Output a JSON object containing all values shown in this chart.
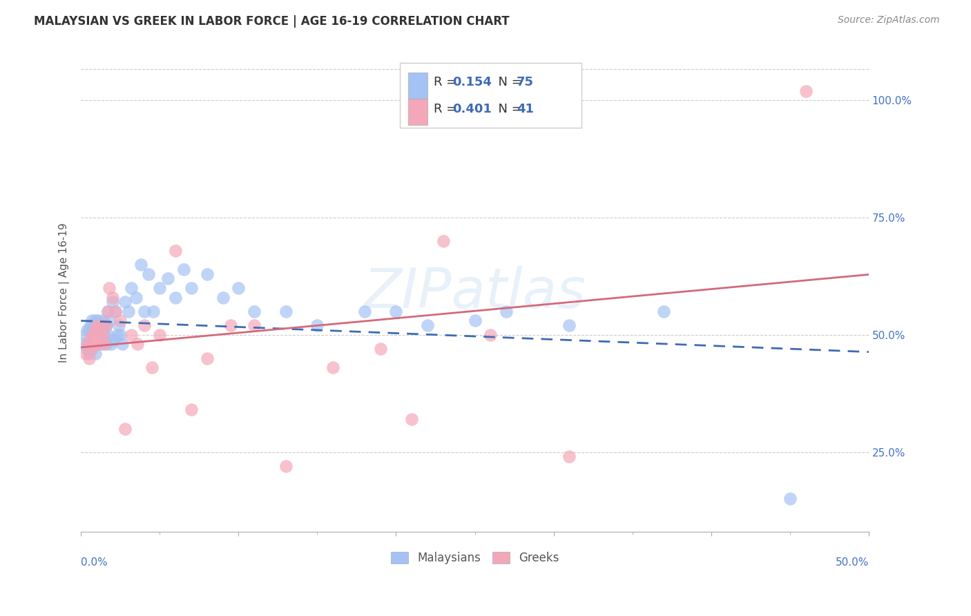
{
  "title": "MALAYSIAN VS GREEK IN LABOR FORCE | AGE 16-19 CORRELATION CHART",
  "source": "Source: ZipAtlas.com",
  "ylabel": "In Labor Force | Age 16-19",
  "ytick_values": [
    0.25,
    0.5,
    0.75,
    1.0
  ],
  "xmin": 0.0,
  "xmax": 0.5,
  "ymin": 0.08,
  "ymax": 1.1,
  "r_malaysian": 0.154,
  "n_malaysian": 75,
  "r_greek": 0.401,
  "n_greek": 41,
  "color_malaysian": "#a4c2f4",
  "color_greek": "#f4a7b9",
  "color_trendline_malaysian": "#3d6bb5",
  "color_trendline_greek": "#d5697a",
  "legend_label_malaysian": "Malaysians",
  "legend_label_greek": "Greeks",
  "watermark": "ZIPatlas",
  "malaysian_x": [
    0.002,
    0.003,
    0.004,
    0.004,
    0.005,
    0.005,
    0.005,
    0.006,
    0.006,
    0.007,
    0.007,
    0.007,
    0.008,
    0.008,
    0.008,
    0.009,
    0.009,
    0.009,
    0.009,
    0.01,
    0.01,
    0.01,
    0.01,
    0.011,
    0.011,
    0.011,
    0.012,
    0.012,
    0.013,
    0.013,
    0.013,
    0.014,
    0.014,
    0.015,
    0.015,
    0.016,
    0.016,
    0.017,
    0.017,
    0.018,
    0.019,
    0.02,
    0.021,
    0.022,
    0.023,
    0.024,
    0.025,
    0.026,
    0.028,
    0.03,
    0.032,
    0.035,
    0.038,
    0.04,
    0.043,
    0.046,
    0.05,
    0.055,
    0.06,
    0.065,
    0.07,
    0.08,
    0.09,
    0.1,
    0.11,
    0.13,
    0.15,
    0.18,
    0.2,
    0.22,
    0.25,
    0.27,
    0.31,
    0.37,
    0.45
  ],
  "malaysian_y": [
    0.48,
    0.5,
    0.47,
    0.51,
    0.48,
    0.51,
    0.46,
    0.52,
    0.49,
    0.5,
    0.53,
    0.47,
    0.51,
    0.49,
    0.52,
    0.5,
    0.48,
    0.53,
    0.46,
    0.51,
    0.5,
    0.49,
    0.52,
    0.5,
    0.48,
    0.53,
    0.51,
    0.49,
    0.5,
    0.52,
    0.48,
    0.51,
    0.53,
    0.5,
    0.49,
    0.52,
    0.48,
    0.55,
    0.5,
    0.53,
    0.48,
    0.57,
    0.49,
    0.55,
    0.5,
    0.52,
    0.5,
    0.48,
    0.57,
    0.55,
    0.6,
    0.58,
    0.65,
    0.55,
    0.63,
    0.55,
    0.6,
    0.62,
    0.58,
    0.64,
    0.6,
    0.63,
    0.58,
    0.6,
    0.55,
    0.55,
    0.52,
    0.55,
    0.55,
    0.52,
    0.53,
    0.55,
    0.52,
    0.55,
    0.15
  ],
  "greek_x": [
    0.003,
    0.004,
    0.005,
    0.006,
    0.007,
    0.007,
    0.008,
    0.009,
    0.009,
    0.01,
    0.01,
    0.011,
    0.012,
    0.013,
    0.014,
    0.015,
    0.016,
    0.017,
    0.018,
    0.02,
    0.022,
    0.025,
    0.028,
    0.032,
    0.036,
    0.04,
    0.045,
    0.05,
    0.06,
    0.07,
    0.08,
    0.095,
    0.11,
    0.13,
    0.16,
    0.19,
    0.21,
    0.23,
    0.26,
    0.31,
    0.46
  ],
  "greek_y": [
    0.46,
    0.48,
    0.45,
    0.49,
    0.47,
    0.5,
    0.48,
    0.51,
    0.49,
    0.48,
    0.52,
    0.5,
    0.49,
    0.52,
    0.5,
    0.48,
    0.52,
    0.55,
    0.6,
    0.58,
    0.55,
    0.53,
    0.3,
    0.5,
    0.48,
    0.52,
    0.43,
    0.5,
    0.68,
    0.34,
    0.45,
    0.52,
    0.52,
    0.22,
    0.43,
    0.47,
    0.32,
    0.7,
    0.5,
    0.24,
    1.02
  ]
}
